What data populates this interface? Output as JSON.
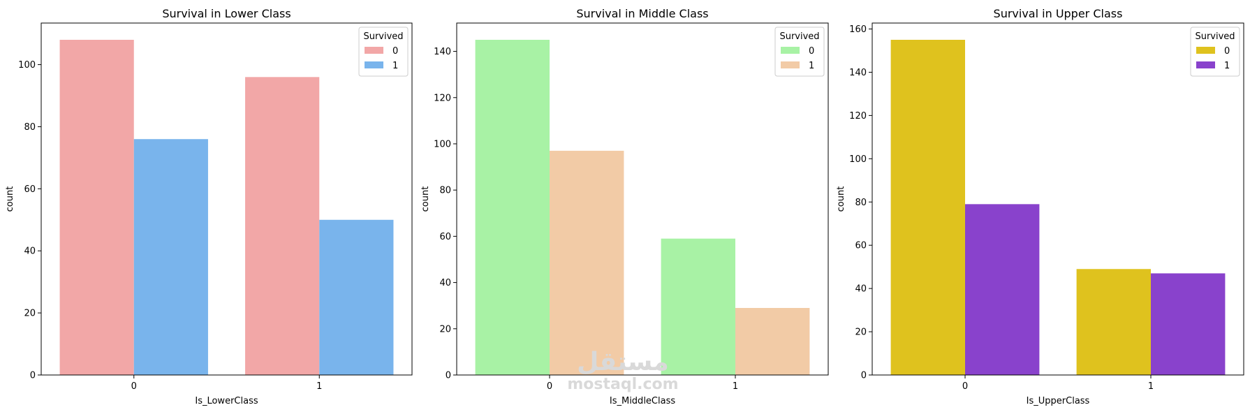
{
  "chart_data": [
    {
      "type": "bar",
      "title": "Survival in Lower Class",
      "xlabel": "Is_LowerClass",
      "ylabel": "count",
      "categories": [
        "0",
        "1"
      ],
      "ylim": [
        0,
        113.4
      ],
      "yticks": [
        0,
        20,
        40,
        60,
        80,
        100
      ],
      "legend": {
        "title": "Survived",
        "placement": "top-right"
      },
      "series": [
        {
          "name": "0",
          "values": [
            108,
            96
          ],
          "color": "#f2a7a7"
        },
        {
          "name": "1",
          "values": [
            76,
            50
          ],
          "color": "#79b4ec"
        }
      ]
    },
    {
      "type": "bar",
      "title": "Survival in Middle Class",
      "xlabel": "Is_MiddleClass",
      "ylabel": "count",
      "categories": [
        "0",
        "1"
      ],
      "ylim": [
        0,
        152.25
      ],
      "yticks": [
        0,
        20,
        40,
        60,
        80,
        100,
        120,
        140
      ],
      "legend": {
        "title": "Survived",
        "placement": "top-right"
      },
      "series": [
        {
          "name": "0",
          "values": [
            145,
            59
          ],
          "color": "#a8f2a5"
        },
        {
          "name": "1",
          "values": [
            97,
            29
          ],
          "color": "#f2cba6"
        }
      ]
    },
    {
      "type": "bar",
      "title": "Survival in Upper Class",
      "xlabel": "Is_UpperClass",
      "ylabel": "count",
      "categories": [
        "0",
        "1"
      ],
      "ylim": [
        0,
        162.75
      ],
      "yticks": [
        0,
        20,
        40,
        60,
        80,
        100,
        120,
        140,
        160
      ],
      "legend": {
        "title": "Survived",
        "placement": "top-right"
      },
      "series": [
        {
          "name": "0",
          "values": [
            155,
            49
          ],
          "color": "#dfc21e"
        },
        {
          "name": "1",
          "values": [
            79,
            47
          ],
          "color": "#8942cc"
        }
      ]
    }
  ],
  "watermark": {
    "logo": "مستقل",
    "text": "mostaql.com"
  }
}
